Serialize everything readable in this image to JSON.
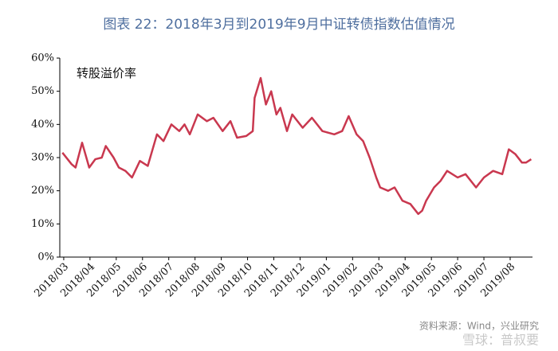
{
  "chart_data": {
    "type": "line",
    "title": "图表 22：2018年3月到2019年9月中证转债指数估值情况",
    "annotation": "转股溢价率",
    "source": "资料来源：Wind，兴业研究",
    "watermark": "雪球：普叔要",
    "x": [
      -0.05,
      0.3,
      0.45,
      0.7,
      0.97,
      1.2,
      1.45,
      1.6,
      1.9,
      2.1,
      2.35,
      2.6,
      2.9,
      3.2,
      3.55,
      3.8,
      4.1,
      4.4,
      4.6,
      4.8,
      5.1,
      5.45,
      5.7,
      6.05,
      6.35,
      6.6,
      6.95,
      7.2,
      7.27,
      7.5,
      7.7,
      7.9,
      8.1,
      8.25,
      8.5,
      8.7,
      9.1,
      9.45,
      9.85,
      10.3,
      10.6,
      10.85,
      11.15,
      11.4,
      11.65,
      11.9,
      12.05,
      12.35,
      12.6,
      12.9,
      13.2,
      13.5,
      13.65,
      13.8,
      14.1,
      14.35,
      14.6,
      15.0,
      15.3,
      15.7,
      16.0,
      16.35,
      16.7,
      16.95,
      17.2,
      17.45,
      17.6,
      17.8
    ],
    "series": [
      {
        "name": "转股溢价率",
        "color": "#c9384f",
        "values": [
          31.5,
          28,
          27,
          34.5,
          27,
          29.5,
          30,
          33.5,
          30,
          27,
          26,
          24,
          29,
          27.5,
          37,
          35,
          40,
          38,
          40,
          37,
          43,
          41,
          42,
          38,
          41,
          36,
          36.5,
          38,
          48,
          54,
          46,
          50,
          43,
          45,
          38,
          43,
          39,
          42,
          38,
          37,
          38,
          42.5,
          37,
          35,
          30,
          24,
          21,
          20,
          21,
          17,
          16,
          13,
          14,
          17,
          21,
          23,
          26,
          24,
          25,
          21,
          24,
          26,
          25,
          32.5,
          31,
          28.5,
          28.5,
          29.5
        ]
      }
    ],
    "xlim": [
      -0.15,
      17.85
    ],
    "xticks": [
      {
        "value": 0,
        "label": "2018/03"
      },
      {
        "value": 1,
        "label": "2018/04"
      },
      {
        "value": 2,
        "label": "2018/05"
      },
      {
        "value": 3,
        "label": "2018/06"
      },
      {
        "value": 4,
        "label": "2018/07"
      },
      {
        "value": 5,
        "label": "2018/08"
      },
      {
        "value": 6,
        "label": "2018/09"
      },
      {
        "value": 7,
        "label": "2018/10"
      },
      {
        "value": 8,
        "label": "2018/11"
      },
      {
        "value": 9,
        "label": "2018/12"
      },
      {
        "value": 10,
        "label": "2019/01"
      },
      {
        "value": 11,
        "label": "2019/02"
      },
      {
        "value": 12,
        "label": "2019/03"
      },
      {
        "value": 13,
        "label": "2019/04"
      },
      {
        "value": 14,
        "label": "2019/05"
      },
      {
        "value": 15,
        "label": "2019/06"
      },
      {
        "value": 16,
        "label": "2019/07"
      },
      {
        "value": 17,
        "label": "2019/08"
      }
    ],
    "ylim": [
      0,
      60
    ],
    "yticks": [
      {
        "value": 0,
        "label": "0%"
      },
      {
        "value": 10,
        "label": "10%"
      },
      {
        "value": 20,
        "label": "20%"
      },
      {
        "value": 30,
        "label": "30%"
      },
      {
        "value": 40,
        "label": "40%"
      },
      {
        "value": 50,
        "label": "50%"
      },
      {
        "value": 60,
        "label": "60%"
      }
    ],
    "grid": false
  }
}
